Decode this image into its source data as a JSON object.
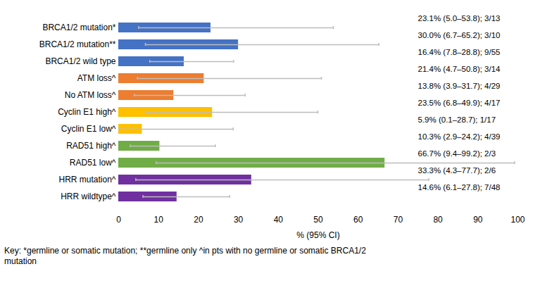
{
  "chart_data": {
    "type": "bar",
    "orientation": "horizontal",
    "categories": [
      "BRCA1/2 mutation*",
      "BRCA1/2 mutation**",
      "BRCA1/2 wild type",
      "ATM loss^",
      "No ATM loss^",
      "Cyclin E1 high^",
      "Cyclin E1 low^",
      "RAD51 high^",
      "RAD51 low^",
      "HRR mutation^",
      "HRR wildtype^"
    ],
    "values": [
      23.1,
      30.0,
      16.4,
      21.4,
      13.8,
      23.5,
      5.9,
      10.3,
      66.7,
      33.3,
      14.6
    ],
    "ci_low": [
      5.0,
      6.7,
      7.8,
      4.7,
      3.9,
      6.8,
      0.1,
      2.9,
      9.4,
      4.3,
      6.1
    ],
    "ci_high": [
      53.8,
      65.2,
      28.8,
      50.8,
      31.7,
      49.9,
      28.7,
      24.2,
      99.2,
      77.7,
      27.8
    ],
    "value_labels": [
      "23.1% (5.0–53.8); 3/13",
      "30.0% (6.7–65.2); 3/10",
      "16.4% (7.8–28.8); 9/55",
      "21.4% (4.7–50.8); 3/14",
      "13.8% (3.9–31.7); 4/29",
      "23.5% (6.8–49.9); 4/17",
      "5.9% (0.1–28.7); 1/17",
      "10.3% (2.9–24.2); 4/39",
      "66.7% (9.4–99.2); 2/3",
      "33.3% (4.3–77.7); 2/6",
      "14.6% (6.1–27.8); 7/48"
    ],
    "colors": [
      "#4472c4",
      "#4472c4",
      "#4472c4",
      "#ed7d31",
      "#ed7d31",
      "#ffc000",
      "#ffc000",
      "#70ad47",
      "#70ad47",
      "#7030a0",
      "#7030a0"
    ],
    "data_labels": true,
    "grid": false,
    "xlabel": "% (95% CI)",
    "xlim": [
      0,
      100
    ],
    "xticks": [
      0,
      10,
      20,
      30,
      40,
      50,
      60,
      70,
      80,
      90,
      100
    ],
    "caption": "Key: *germline or somatic mutation; **germline only ^in pts with no germline or somatic BRCA1/2 mutation"
  }
}
